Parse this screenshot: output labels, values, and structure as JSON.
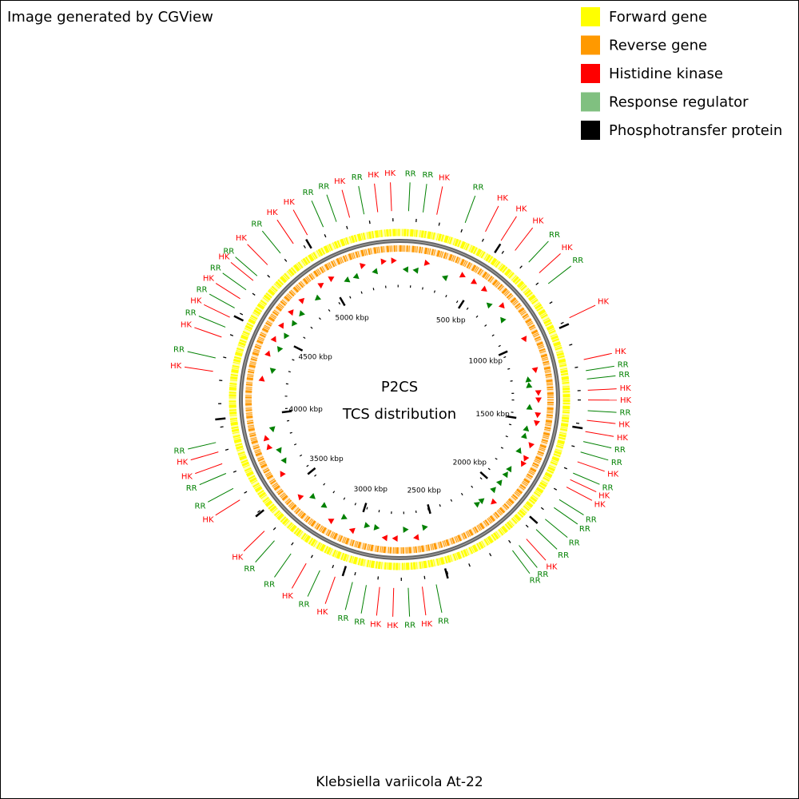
{
  "header": {
    "title": "Image generated by CGView"
  },
  "legend": [
    {
      "label": "Forward gene",
      "color": "#ffff00"
    },
    {
      "label": "Reverse gene",
      "color": "#ff9900"
    },
    {
      "label": "Histidine kinase",
      "color": "#ff0000"
    },
    {
      "label": "Response regulator",
      "color": "#80c080"
    },
    {
      "label": "Phosphotransfer protein",
      "color": "#000000"
    }
  ],
  "map": {
    "title_lines": [
      "P2CS",
      "TCS distribution"
    ],
    "range_kbp": [
      0,
      5458.5
    ],
    "ticks": [
      {
        "value": 500,
        "label": "500 kbp"
      },
      {
        "value": 1000,
        "label": "1000 kbp"
      },
      {
        "value": 1500,
        "label": "1500 kbp"
      },
      {
        "value": 2000,
        "label": "2000 kbp"
      },
      {
        "value": 2500,
        "label": "2500 kbp"
      },
      {
        "value": 3000,
        "label": "3000 kbp"
      },
      {
        "value": 3500,
        "label": "3500 kbp"
      },
      {
        "value": 4000,
        "label": "4000 kbp"
      },
      {
        "value": 4500,
        "label": "4500 kbp"
      },
      {
        "value": 5000,
        "label": "5000 kbp"
      }
    ],
    "label_colors": {
      "HK": "#ff0000",
      "RR": "#008000"
    },
    "features": [
      {
        "label": "RR",
        "position_kbp": 42
      },
      {
        "label": "RR",
        "position_kbp": 109
      },
      {
        "label": "HK",
        "position_kbp": 173
      },
      {
        "label": "RR",
        "position_kbp": 309
      },
      {
        "label": "HK",
        "position_kbp": 411
      },
      {
        "label": "HK",
        "position_kbp": 494
      },
      {
        "label": "HK",
        "position_kbp": 573
      },
      {
        "label": "RR",
        "position_kbp": 656
      },
      {
        "label": "HK",
        "position_kbp": 725
      },
      {
        "label": "RR",
        "position_kbp": 790
      },
      {
        "label": "HK",
        "position_kbp": 975
      },
      {
        "label": "HK",
        "position_kbp": 1179
      },
      {
        "label": "RR",
        "position_kbp": 1231
      },
      {
        "label": "RR",
        "position_kbp": 1270
      },
      {
        "label": "HK",
        "position_kbp": 1322
      },
      {
        "label": "HK",
        "position_kbp": 1367
      },
      {
        "label": "RR",
        "position_kbp": 1416
      },
      {
        "label": "HK",
        "position_kbp": 1461
      },
      {
        "label": "HK",
        "position_kbp": 1513
      },
      {
        "label": "RR",
        "position_kbp": 1560
      },
      {
        "label": "RR",
        "position_kbp": 1610
      },
      {
        "label": "HK",
        "position_kbp": 1657
      },
      {
        "label": "RR",
        "position_kbp": 1713
      },
      {
        "label": "HK",
        "position_kbp": 1746
      },
      {
        "label": "HK",
        "position_kbp": 1784
      },
      {
        "label": "RR",
        "position_kbp": 1851
      },
      {
        "label": "RR",
        "position_kbp": 1895
      },
      {
        "label": "RR",
        "position_kbp": 1962
      },
      {
        "label": "RR",
        "position_kbp": 2025
      },
      {
        "label": "HK",
        "position_kbp": 2088
      },
      {
        "label": "RR",
        "position_kbp": 2133
      },
      {
        "label": "RR",
        "position_kbp": 2171
      },
      {
        "label": "RR",
        "position_kbp": 2559
      },
      {
        "label": "HK",
        "position_kbp": 2624
      },
      {
        "label": "RR",
        "position_kbp": 2689
      },
      {
        "label": "HK",
        "position_kbp": 2756
      },
      {
        "label": "HK",
        "position_kbp": 2821
      },
      {
        "label": "RR",
        "position_kbp": 2883
      },
      {
        "label": "RR",
        "position_kbp": 2948
      },
      {
        "label": "HK",
        "position_kbp": 3032
      },
      {
        "label": "RR",
        "position_kbp": 3108
      },
      {
        "label": "HK",
        "position_kbp": 3179
      },
      {
        "label": "RR",
        "position_kbp": 3262
      },
      {
        "label": "RR",
        "position_kbp": 3359
      },
      {
        "label": "HK",
        "position_kbp": 3423
      },
      {
        "label": "HK",
        "position_kbp": 3606
      },
      {
        "label": "RR",
        "position_kbp": 3667
      },
      {
        "label": "RR",
        "position_kbp": 3744
      },
      {
        "label": "HK",
        "position_kbp": 3792
      },
      {
        "label": "HK",
        "position_kbp": 3849
      },
      {
        "label": "RR",
        "position_kbp": 3894
      },
      {
        "label": "HK",
        "position_kbp": 4224
      },
      {
        "label": "RR",
        "position_kbp": 4287
      },
      {
        "label": "HK",
        "position_kbp": 4387
      },
      {
        "label": "RR",
        "position_kbp": 4436
      },
      {
        "label": "HK",
        "position_kbp": 4486
      },
      {
        "label": "RR",
        "position_kbp": 4534
      },
      {
        "label": "HK",
        "position_kbp": 4584
      },
      {
        "label": "RR",
        "position_kbp": 4633
      },
      {
        "label": "HK",
        "position_kbp": 4687
      },
      {
        "label": "RR",
        "position_kbp": 4715
      },
      {
        "label": "HK",
        "position_kbp": 4785
      },
      {
        "label": "RR",
        "position_kbp": 4865
      },
      {
        "label": "HK",
        "position_kbp": 4939
      },
      {
        "label": "HK",
        "position_kbp": 5015
      },
      {
        "label": "RR",
        "position_kbp": 5097
      },
      {
        "label": "RR",
        "position_kbp": 5162
      },
      {
        "label": "HK",
        "position_kbp": 5226
      },
      {
        "label": "RR",
        "position_kbp": 5294
      },
      {
        "label": "HK",
        "position_kbp": 5358
      },
      {
        "label": "HK",
        "position_kbp": 5422
      }
    ]
  },
  "footer": {
    "organism": "Klebsiella variicola At-22"
  }
}
